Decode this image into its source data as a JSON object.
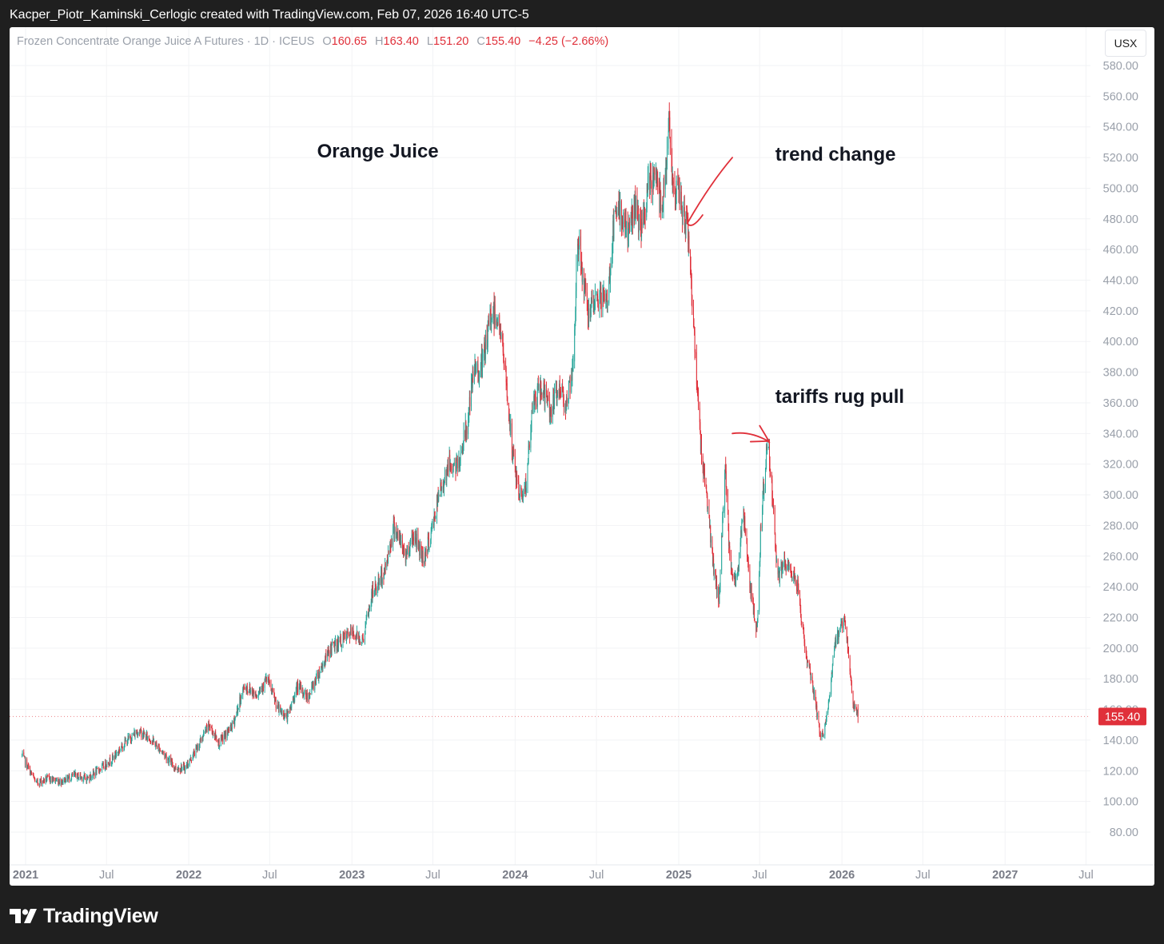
{
  "header": {
    "caption": "Kacper_Piotr_Kaminski_Cerlogic created with TradingView.com, Feb 07, 2026 16:40 UTC-5"
  },
  "legend": {
    "symbol": "Frozen Concentrate Orange Juice A Futures · 1D · ICEUS",
    "o_label": "O",
    "o_value": "160.65",
    "h_label": "H",
    "h_value": "163.40",
    "l_label": "L",
    "l_value": "151.20",
    "c_label": "C",
    "c_value": "155.40",
    "change": "−4.25 (−2.66%)"
  },
  "currency_button": "USX",
  "footer": {
    "brand": "TradingView"
  },
  "colors": {
    "up": "#26a69a",
    "down": "#e0303a",
    "annotation": "#e0303a",
    "grid": "#f2f3f5"
  },
  "chart_data": {
    "type": "candlestick",
    "annotations": [
      {
        "text": "Orange Juice",
        "at": [
          "2022-10-15",
          520
        ]
      },
      {
        "text": "trend change",
        "at": [
          "2025-08-05",
          518
        ]
      },
      {
        "text": "tariffs rug pull",
        "at": [
          "2025-08-05",
          360
        ]
      }
    ],
    "arrows": [
      {
        "from": [
          "2025-05-01",
          520
        ],
        "to": [
          "2025-01-20",
          477
        ]
      },
      {
        "from": [
          "2025-05-01",
          340
        ],
        "to": [
          "2025-07-20",
          335
        ]
      }
    ],
    "last_price": "155.40",
    "ylim": [
      70,
      590
    ],
    "y_ticks": [
      "80.00",
      "100.00",
      "120.00",
      "140.00",
      "160.00",
      "180.00",
      "200.00",
      "220.00",
      "240.00",
      "260.00",
      "280.00",
      "300.00",
      "320.00",
      "340.00",
      "360.00",
      "380.00",
      "400.00",
      "420.00",
      "440.00",
      "460.00",
      "480.00",
      "500.00",
      "520.00",
      "540.00",
      "560.00",
      "580.00"
    ],
    "x_ticks": [
      {
        "label": "2021",
        "date": "2021-01-01",
        "bold": true
      },
      {
        "label": "Jul",
        "date": "2021-07-01",
        "bold": false
      },
      {
        "label": "2022",
        "date": "2022-01-01",
        "bold": true
      },
      {
        "label": "Jul",
        "date": "2022-07-01",
        "bold": false
      },
      {
        "label": "2023",
        "date": "2023-01-01",
        "bold": true
      },
      {
        "label": "Jul",
        "date": "2023-07-01",
        "bold": false
      },
      {
        "label": "2024",
        "date": "2024-01-01",
        "bold": true
      },
      {
        "label": "Jul",
        "date": "2024-07-01",
        "bold": false
      },
      {
        "label": "2025",
        "date": "2025-01-01",
        "bold": true
      },
      {
        "label": "Jul",
        "date": "2025-07-01",
        "bold": false
      },
      {
        "label": "2026",
        "date": "2026-01-01",
        "bold": true
      },
      {
        "label": "Jul",
        "date": "2026-07-01",
        "bold": false
      },
      {
        "label": "2027",
        "date": "2027-01-01",
        "bold": true
      },
      {
        "label": "Jul",
        "date": "2027-07-01",
        "bold": false
      }
    ],
    "close_path": [
      {
        "date": "2020-12-24",
        "close": 130
      },
      {
        "date": "2021-01-10",
        "close": 120
      },
      {
        "date": "2021-01-25",
        "close": 112
      },
      {
        "date": "2021-02-20",
        "close": 115
      },
      {
        "date": "2021-03-20",
        "close": 113
      },
      {
        "date": "2021-04-20",
        "close": 117
      },
      {
        "date": "2021-05-20",
        "close": 115
      },
      {
        "date": "2021-06-20",
        "close": 122
      },
      {
        "date": "2021-07-15",
        "close": 128
      },
      {
        "date": "2021-08-10",
        "close": 138
      },
      {
        "date": "2021-09-10",
        "close": 146
      },
      {
        "date": "2021-10-10",
        "close": 140
      },
      {
        "date": "2021-11-10",
        "close": 130
      },
      {
        "date": "2021-12-01",
        "close": 122
      },
      {
        "date": "2021-12-25",
        "close": 122
      },
      {
        "date": "2022-01-20",
        "close": 135
      },
      {
        "date": "2022-02-15",
        "close": 150
      },
      {
        "date": "2022-03-10",
        "close": 138
      },
      {
        "date": "2022-04-10",
        "close": 150
      },
      {
        "date": "2022-05-05",
        "close": 175
      },
      {
        "date": "2022-06-01",
        "close": 170
      },
      {
        "date": "2022-06-25",
        "close": 180
      },
      {
        "date": "2022-07-20",
        "close": 160
      },
      {
        "date": "2022-08-10",
        "close": 155
      },
      {
        "date": "2022-09-01",
        "close": 175
      },
      {
        "date": "2022-09-25",
        "close": 168
      },
      {
        "date": "2022-10-20",
        "close": 185
      },
      {
        "date": "2022-11-15",
        "close": 200
      },
      {
        "date": "2022-12-10",
        "close": 205
      },
      {
        "date": "2023-01-01",
        "close": 210
      },
      {
        "date": "2023-01-25",
        "close": 205
      },
      {
        "date": "2023-02-15",
        "close": 235
      },
      {
        "date": "2023-03-15",
        "close": 250
      },
      {
        "date": "2023-04-05",
        "close": 280
      },
      {
        "date": "2023-05-01",
        "close": 260
      },
      {
        "date": "2023-05-20",
        "close": 275
      },
      {
        "date": "2023-06-10",
        "close": 258
      },
      {
        "date": "2023-06-25",
        "close": 272
      },
      {
        "date": "2023-07-15",
        "close": 300
      },
      {
        "date": "2023-08-05",
        "close": 320
      },
      {
        "date": "2023-08-25",
        "close": 318
      },
      {
        "date": "2023-09-15",
        "close": 345
      },
      {
        "date": "2023-10-01",
        "close": 380
      },
      {
        "date": "2023-10-20",
        "close": 385
      },
      {
        "date": "2023-11-10",
        "close": 420
      },
      {
        "date": "2023-11-25",
        "close": 415
      },
      {
        "date": "2023-12-10",
        "close": 380
      },
      {
        "date": "2023-12-25",
        "close": 330
      },
      {
        "date": "2024-01-10",
        "close": 300
      },
      {
        "date": "2024-01-25",
        "close": 305
      },
      {
        "date": "2024-02-10",
        "close": 360
      },
      {
        "date": "2024-03-01",
        "close": 370
      },
      {
        "date": "2024-03-20",
        "close": 355
      },
      {
        "date": "2024-04-10",
        "close": 370
      },
      {
        "date": "2024-04-25",
        "close": 360
      },
      {
        "date": "2024-05-10",
        "close": 380
      },
      {
        "date": "2024-05-20",
        "close": 470
      },
      {
        "date": "2024-06-01",
        "close": 440
      },
      {
        "date": "2024-06-15",
        "close": 415
      },
      {
        "date": "2024-07-05",
        "close": 430
      },
      {
        "date": "2024-07-25",
        "close": 425
      },
      {
        "date": "2024-08-10",
        "close": 480
      },
      {
        "date": "2024-08-25",
        "close": 485
      },
      {
        "date": "2024-09-10",
        "close": 470
      },
      {
        "date": "2024-09-25",
        "close": 490
      },
      {
        "date": "2024-10-10",
        "close": 470
      },
      {
        "date": "2024-10-25",
        "close": 500
      },
      {
        "date": "2024-11-10",
        "close": 510
      },
      {
        "date": "2024-11-25",
        "close": 490
      },
      {
        "date": "2024-12-10",
        "close": 540
      },
      {
        "date": "2024-12-20",
        "close": 500
      },
      {
        "date": "2025-01-01",
        "close": 495
      },
      {
        "date": "2025-01-15",
        "close": 480
      },
      {
        "date": "2025-01-25",
        "close": 465
      },
      {
        "date": "2025-02-05",
        "close": 400
      },
      {
        "date": "2025-02-20",
        "close": 330
      },
      {
        "date": "2025-03-05",
        "close": 300
      },
      {
        "date": "2025-03-20",
        "close": 250
      },
      {
        "date": "2025-04-01",
        "close": 230
      },
      {
        "date": "2025-04-15",
        "close": 320
      },
      {
        "date": "2025-04-25",
        "close": 260
      },
      {
        "date": "2025-05-10",
        "close": 240
      },
      {
        "date": "2025-05-25",
        "close": 290
      },
      {
        "date": "2025-06-10",
        "close": 240
      },
      {
        "date": "2025-06-25",
        "close": 210
      },
      {
        "date": "2025-07-05",
        "close": 290
      },
      {
        "date": "2025-07-20",
        "close": 340
      },
      {
        "date": "2025-07-28",
        "close": 305
      },
      {
        "date": "2025-08-10",
        "close": 245
      },
      {
        "date": "2025-08-25",
        "close": 255
      },
      {
        "date": "2025-09-10",
        "close": 250
      },
      {
        "date": "2025-09-25",
        "close": 240
      },
      {
        "date": "2025-10-10",
        "close": 200
      },
      {
        "date": "2025-10-25",
        "close": 180
      },
      {
        "date": "2025-11-05",
        "close": 160
      },
      {
        "date": "2025-11-15",
        "close": 140
      },
      {
        "date": "2025-11-25",
        "close": 150
      },
      {
        "date": "2025-12-05",
        "close": 170
      },
      {
        "date": "2025-12-15",
        "close": 200
      },
      {
        "date": "2025-12-25",
        "close": 210
      },
      {
        "date": "2026-01-05",
        "close": 220
      },
      {
        "date": "2026-01-15",
        "close": 200
      },
      {
        "date": "2026-01-25",
        "close": 165
      },
      {
        "date": "2026-02-06",
        "close": 155.4
      }
    ],
    "last_bar": {
      "open": 160.65,
      "high": 163.4,
      "low": 151.2,
      "close": 155.4
    }
  }
}
